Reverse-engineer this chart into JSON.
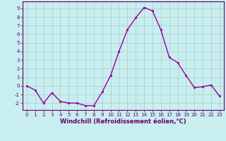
{
  "x": [
    0,
    1,
    2,
    3,
    4,
    5,
    6,
    7,
    8,
    9,
    10,
    11,
    12,
    13,
    14,
    15,
    16,
    17,
    18,
    19,
    20,
    21,
    22,
    23
  ],
  "y": [
    0,
    -0.5,
    -2,
    -0.8,
    -1.8,
    -2,
    -2,
    -2.3,
    -2.3,
    -0.7,
    1.2,
    4.0,
    6.5,
    7.9,
    9.1,
    8.7,
    6.5,
    3.3,
    2.7,
    1.2,
    -0.2,
    -0.1,
    0.1,
    -1.2
  ],
  "line_color": "#990099",
  "marker_color": "#990099",
  "bg_color": "#c8eef0",
  "grid_color": "#aacccc",
  "xlabel": "Windchill (Refroidissement éolien,°C)",
  "xlim": [
    -0.5,
    23.5
  ],
  "ylim": [
    -2.8,
    9.8
  ],
  "yticks": [
    -2,
    -1,
    0,
    1,
    2,
    3,
    4,
    5,
    6,
    7,
    8,
    9
  ],
  "xticks": [
    0,
    1,
    2,
    3,
    4,
    5,
    6,
    7,
    8,
    9,
    10,
    11,
    12,
    13,
    14,
    15,
    16,
    17,
    18,
    19,
    20,
    21,
    22,
    23
  ],
  "tick_fontsize": 5.0,
  "xlabel_fontsize": 6.0,
  "line_width": 1.0,
  "marker_size": 2.0
}
